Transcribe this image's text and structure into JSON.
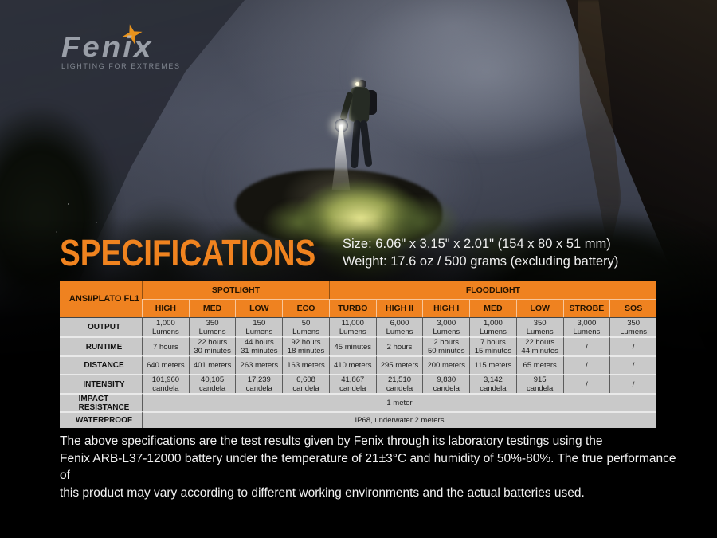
{
  "brand": {
    "name": "Fenix",
    "tagline": "LIGHTING FOR EXTREMES",
    "star_color": "#e8931d",
    "logo_color": "#b6bbc4"
  },
  "heading": {
    "title": "SPECIFICATIONS",
    "size_line": "Size: 6.06\" x 3.15\" x 2.01\"  (154 x 80 x 51 mm)",
    "weight_line": "Weight: 17.6 oz / 500 grams (excluding battery)"
  },
  "colors": {
    "accent_orange": "#ef8220",
    "table_cell_gray": "#c9c9c9",
    "table_header_text": "#241300",
    "footnote_text": "#f2f2f2"
  },
  "table": {
    "corner_label": "ANSI/PLATO FL1",
    "groups": [
      {
        "label": "SPOTLIGHT",
        "span": 4
      },
      {
        "label": "FLOODLIGHT",
        "span": 7
      }
    ],
    "columns": [
      "HIGH",
      "MED",
      "LOW",
      "ECO",
      "TURBO",
      "HIGH II",
      "HIGH I",
      "MED",
      "LOW",
      "STROBE",
      "SOS"
    ],
    "rows": [
      {
        "label": "OUTPUT",
        "cells": [
          "1,000\nLumens",
          "350\nLumens",
          "150\nLumens",
          "50\nLumens",
          "11,000\nLumens",
          "6,000\nLumens",
          "3,000\nLumens",
          "1,000\nLumens",
          "350\nLumens",
          "3,000\nLumens",
          "350\nLumens"
        ]
      },
      {
        "label": "RUNTIME",
        "cells": [
          "7 hours",
          "22 hours\n30 minutes",
          "44 hours\n31 minutes",
          "92 hours\n18 minutes",
          "45 minutes",
          "2 hours",
          "2 hours\n50 minutes",
          "7 hours\n15 minutes",
          "22 hours\n44 minutes",
          "/",
          "/"
        ]
      },
      {
        "label": "DISTANCE",
        "cells": [
          "640 meters",
          "401 meters",
          "263 meters",
          "163 meters",
          "410 meters",
          "295 meters",
          "200 meters",
          "115 meters",
          "65 meters",
          "/",
          "/"
        ]
      },
      {
        "label": "INTENSITY",
        "cells": [
          "101,960\ncandela",
          "40,105\ncandela",
          "17,239\ncandela",
          "6,608\ncandela",
          "41,867\ncandela",
          "21,510\ncandela",
          "9,830\ncandela",
          "3,142\ncandela",
          "915\ncandela",
          "/",
          "/"
        ]
      }
    ],
    "full_rows": [
      {
        "label": "IMPACT\nRESISTANCE",
        "value": "1 meter"
      },
      {
        "label": "WATERPROOF",
        "value": "IP68, underwater 2 meters"
      }
    ]
  },
  "footnote": [
    "The above specifications are the test results given by Fenix through its laboratory testings using the",
    "Fenix ARB-L37-12000 battery under the temperature of 21±3°C and humidity of 50%-80%. The true performance of",
    "this product may vary according to different working environments and the actual batteries used."
  ]
}
